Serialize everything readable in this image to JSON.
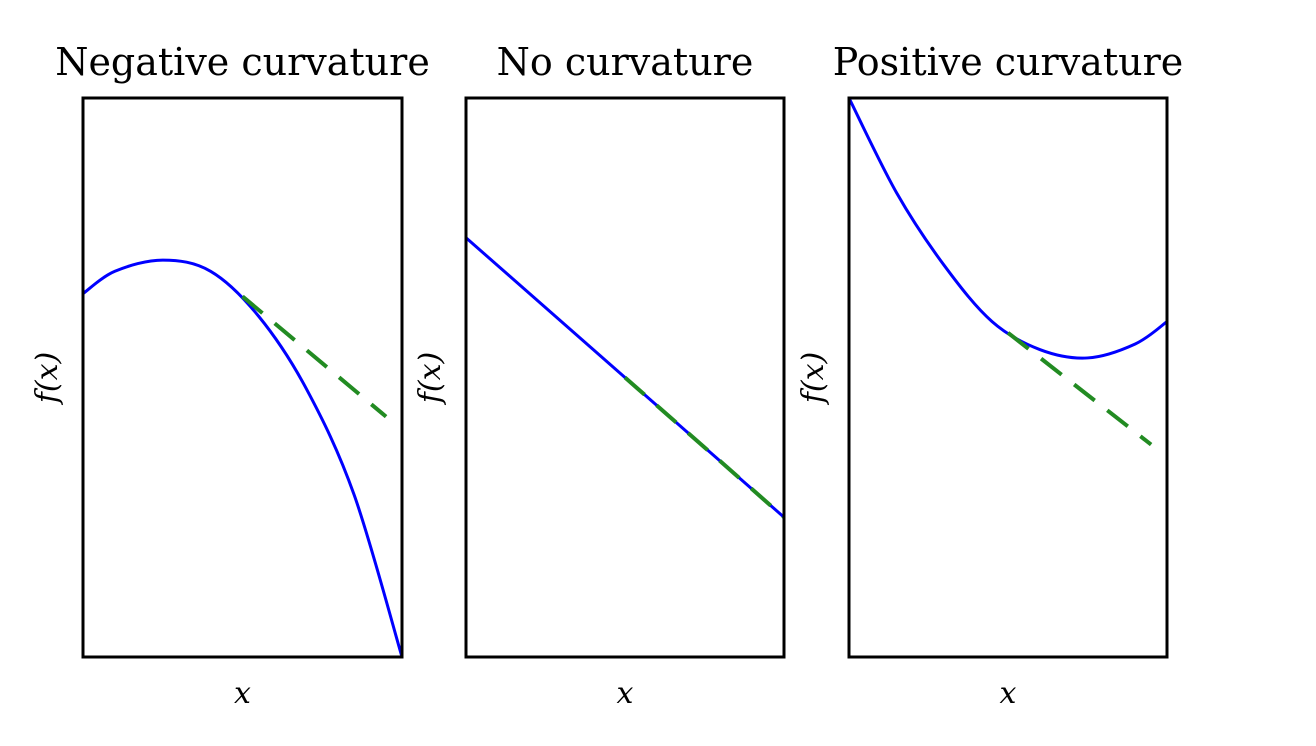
{
  "chart_data": [
    {
      "type": "line",
      "title": "Negative curvature",
      "xlabel": "x",
      "ylabel": "f(x)",
      "xlim": [
        0,
        1
      ],
      "ylim": [
        -1.2,
        0.8
      ],
      "grid": false,
      "series": [
        {
          "role": "function",
          "color": "#0000ff",
          "style": "solid",
          "x": [
            0,
            0.1,
            0.25,
            0.4,
            0.55,
            0.7,
            0.85,
            1.0
          ],
          "y": [
            0.1,
            0.18,
            0.22,
            0.18,
            0.02,
            -0.24,
            -0.62,
            -1.2
          ]
        },
        {
          "role": "tangent",
          "color": "#228b22",
          "style": "dashed",
          "x": [
            0.5,
            0.95
          ],
          "y": [
            0.09,
            -0.34
          ]
        }
      ]
    },
    {
      "type": "line",
      "title": "No curvature",
      "xlabel": "x",
      "ylabel": "f(x)",
      "xlim": [
        0,
        1
      ],
      "ylim": [
        -1.2,
        0.8
      ],
      "grid": false,
      "series": [
        {
          "role": "function",
          "color": "#0000ff",
          "style": "solid",
          "x": [
            0,
            1
          ],
          "y": [
            0.3,
            -0.7
          ]
        },
        {
          "role": "tangent",
          "color": "#228b22",
          "style": "dashed",
          "x": [
            0.5,
            1.0
          ],
          "y": [
            -0.2,
            -0.7
          ]
        }
      ]
    },
    {
      "type": "line",
      "title": "Positive curvature",
      "xlabel": "x",
      "ylabel": "f(x)",
      "xlim": [
        0,
        1
      ],
      "ylim": [
        -1.2,
        0.8
      ],
      "grid": false,
      "series": [
        {
          "role": "function",
          "color": "#0000ff",
          "style": "solid",
          "x": [
            0,
            0.15,
            0.3,
            0.45,
            0.6,
            0.75,
            0.9,
            1.0
          ],
          "y": [
            0.8,
            0.46,
            0.2,
            0.0,
            -0.1,
            -0.13,
            -0.08,
            0.0
          ]
        },
        {
          "role": "tangent",
          "color": "#228b22",
          "style": "dashed",
          "x": [
            0.5,
            0.95
          ],
          "y": [
            -0.04,
            -0.44
          ]
        }
      ]
    }
  ]
}
